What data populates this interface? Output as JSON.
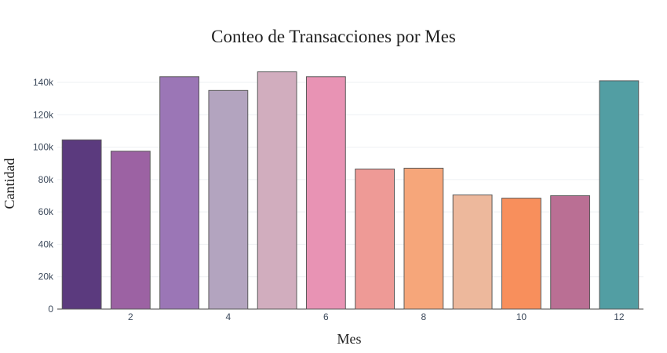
{
  "chart_data": {
    "type": "bar",
    "title": "Conteo de Transacciones por Mes",
    "xlabel": "Mes",
    "ylabel": "Cantidad",
    "x": [
      1,
      2,
      3,
      4,
      5,
      6,
      7,
      8,
      9,
      10,
      11,
      12
    ],
    "values": [
      104500,
      97500,
      143500,
      135000,
      146500,
      143500,
      86500,
      87000,
      70500,
      68500,
      70000,
      141000
    ],
    "colors": [
      "#5b3a7e",
      "#9c62a3",
      "#9b76b6",
      "#b3a4bf",
      "#d1adbe",
      "#e893b4",
      "#ee9a96",
      "#f6a67a",
      "#edb89c",
      "#f88f5c",
      "#ba6f94",
      "#529ea3"
    ],
    "xticks": [
      "2",
      "4",
      "6",
      "8",
      "10",
      "12"
    ],
    "yticks": [
      "0",
      "20k",
      "40k",
      "60k",
      "80k",
      "100k",
      "120k",
      "140k"
    ],
    "ylim": [
      0,
      150000
    ],
    "grid": true
  }
}
